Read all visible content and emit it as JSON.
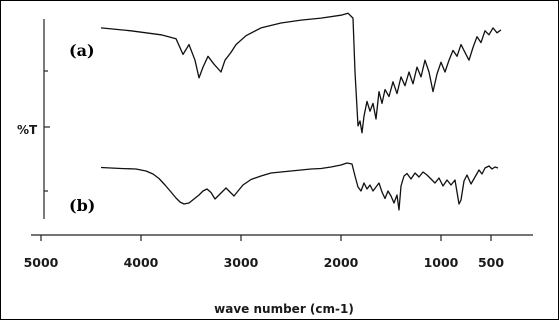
{
  "chart_data": {
    "type": "line",
    "title": "",
    "xlabel": "wave number (cm-1)",
    "ylabel": "%T",
    "xlim": [
      5000,
      0
    ],
    "x_reversed": true,
    "x_ticks": [
      5000,
      4000,
      3000,
      2000,
      1000,
      500
    ],
    "y_ticks": [],
    "grid": false,
    "legend": "none",
    "series": [
      {
        "name": "(a)",
        "points": [
          [
            4400,
            0.95
          ],
          [
            4100,
            0.92
          ],
          [
            3800,
            0.88
          ],
          [
            3650,
            0.84
          ],
          [
            3580,
            0.68
          ],
          [
            3520,
            0.78
          ],
          [
            3460,
            0.62
          ],
          [
            3420,
            0.44
          ],
          [
            3380,
            0.55
          ],
          [
            3330,
            0.66
          ],
          [
            3270,
            0.58
          ],
          [
            3200,
            0.5
          ],
          [
            3160,
            0.62
          ],
          [
            3100,
            0.7
          ],
          [
            3050,
            0.78
          ],
          [
            2950,
            0.87
          ],
          [
            2800,
            0.95
          ],
          [
            2600,
            1.0
          ],
          [
            2400,
            1.03
          ],
          [
            2200,
            1.05
          ],
          [
            2000,
            1.08
          ],
          [
            1930,
            1.1
          ],
          [
            1880,
            1.05
          ],
          [
            1860,
            0.5
          ],
          [
            1830,
            -0.05
          ],
          [
            1810,
            0.0
          ],
          [
            1790,
            -0.12
          ],
          [
            1770,
            0.05
          ],
          [
            1740,
            0.2
          ],
          [
            1710,
            0.1
          ],
          [
            1680,
            0.18
          ],
          [
            1650,
            0.02
          ],
          [
            1620,
            0.3
          ],
          [
            1590,
            0.18
          ],
          [
            1560,
            0.32
          ],
          [
            1520,
            0.25
          ],
          [
            1480,
            0.4
          ],
          [
            1440,
            0.28
          ],
          [
            1400,
            0.45
          ],
          [
            1360,
            0.36
          ],
          [
            1320,
            0.5
          ],
          [
            1280,
            0.38
          ],
          [
            1240,
            0.55
          ],
          [
            1200,
            0.45
          ],
          [
            1160,
            0.62
          ],
          [
            1120,
            0.5
          ],
          [
            1080,
            0.3
          ],
          [
            1040,
            0.48
          ],
          [
            1000,
            0.6
          ],
          [
            960,
            0.5
          ],
          [
            920,
            0.62
          ],
          [
            880,
            0.72
          ],
          [
            840,
            0.66
          ],
          [
            800,
            0.78
          ],
          [
            760,
            0.7
          ],
          [
            720,
            0.62
          ],
          [
            680,
            0.75
          ],
          [
            640,
            0.86
          ],
          [
            600,
            0.8
          ],
          [
            560,
            0.92
          ],
          [
            520,
            0.88
          ],
          [
            480,
            0.95
          ],
          [
            440,
            0.9
          ],
          [
            400,
            0.93
          ]
        ]
      },
      {
        "name": "(b)",
        "points": [
          [
            4400,
            0.97
          ],
          [
            4200,
            0.95
          ],
          [
            4050,
            0.94
          ],
          [
            3950,
            0.9
          ],
          [
            3880,
            0.84
          ],
          [
            3820,
            0.75
          ],
          [
            3760,
            0.62
          ],
          [
            3700,
            0.48
          ],
          [
            3650,
            0.36
          ],
          [
            3610,
            0.28
          ],
          [
            3570,
            0.24
          ],
          [
            3520,
            0.26
          ],
          [
            3470,
            0.34
          ],
          [
            3420,
            0.42
          ],
          [
            3380,
            0.5
          ],
          [
            3340,
            0.54
          ],
          [
            3300,
            0.47
          ],
          [
            3260,
            0.34
          ],
          [
            3220,
            0.42
          ],
          [
            3180,
            0.5
          ],
          [
            3150,
            0.56
          ],
          [
            3110,
            0.48
          ],
          [
            3070,
            0.4
          ],
          [
            3030,
            0.5
          ],
          [
            2980,
            0.62
          ],
          [
            2900,
            0.73
          ],
          [
            2800,
            0.8
          ],
          [
            2700,
            0.86
          ],
          [
            2600,
            0.88
          ],
          [
            2500,
            0.9
          ],
          [
            2400,
            0.92
          ],
          [
            2300,
            0.94
          ],
          [
            2200,
            0.95
          ],
          [
            2100,
            0.98
          ],
          [
            2000,
            1.02
          ],
          [
            1940,
            1.06
          ],
          [
            1890,
            1.04
          ],
          [
            1860,
            0.8
          ],
          [
            1830,
            0.58
          ],
          [
            1800,
            0.5
          ],
          [
            1770,
            0.66
          ],
          [
            1740,
            0.54
          ],
          [
            1710,
            0.62
          ],
          [
            1680,
            0.5
          ],
          [
            1650,
            0.58
          ],
          [
            1620,
            0.66
          ],
          [
            1590,
            0.48
          ],
          [
            1560,
            0.35
          ],
          [
            1530,
            0.5
          ],
          [
            1500,
            0.4
          ],
          [
            1470,
            0.26
          ],
          [
            1440,
            0.42
          ],
          [
            1420,
            0.12
          ],
          [
            1400,
            0.6
          ],
          [
            1370,
            0.8
          ],
          [
            1340,
            0.85
          ],
          [
            1300,
            0.74
          ],
          [
            1260,
            0.86
          ],
          [
            1220,
            0.78
          ],
          [
            1180,
            0.88
          ],
          [
            1140,
            0.82
          ],
          [
            1100,
            0.74
          ],
          [
            1060,
            0.66
          ],
          [
            1020,
            0.76
          ],
          [
            980,
            0.6
          ],
          [
            940,
            0.72
          ],
          [
            900,
            0.62
          ],
          [
            860,
            0.72
          ],
          [
            820,
            0.24
          ],
          [
            800,
            0.32
          ],
          [
            770,
            0.7
          ],
          [
            740,
            0.82
          ],
          [
            700,
            0.64
          ],
          [
            660,
            0.78
          ],
          [
            620,
            0.92
          ],
          [
            590,
            0.84
          ],
          [
            560,
            0.96
          ],
          [
            520,
            1.0
          ],
          [
            490,
            0.94
          ],
          [
            460,
            0.98
          ],
          [
            430,
            0.96
          ]
        ]
      }
    ]
  },
  "colors": {
    "line": "#111111",
    "axis": "#222222",
    "background": "#ffffff"
  }
}
